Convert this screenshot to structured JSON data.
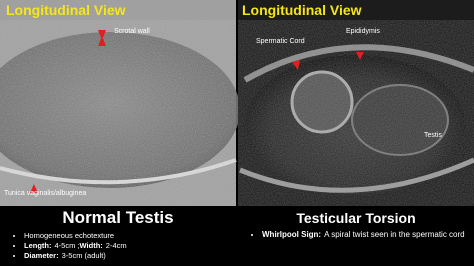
{
  "left_panel": {
    "heading": "Longitudinal View",
    "labels": [
      "Scrotal wall",
      "Tunica vaginalis/albuginea"
    ],
    "title": "Normal Testis",
    "bullets": [
      [
        "Homogeneous echotexture"
      ],
      [
        "Length:",
        "4-5cm ;",
        "Width:",
        "2-4cm"
      ],
      [
        "Diameter:",
        "3-5cm (adult)"
      ]
    ]
  },
  "right_panel": {
    "heading": "Longitudinal View",
    "labels": [
      "Spermatic Cord",
      "Epididymis",
      "Testis"
    ],
    "title": "Testicular Torsion",
    "bullets": [
      [
        "Whirlpool Sign:",
        "A spiral twist seen in the spermatic cord"
      ]
    ]
  }
}
